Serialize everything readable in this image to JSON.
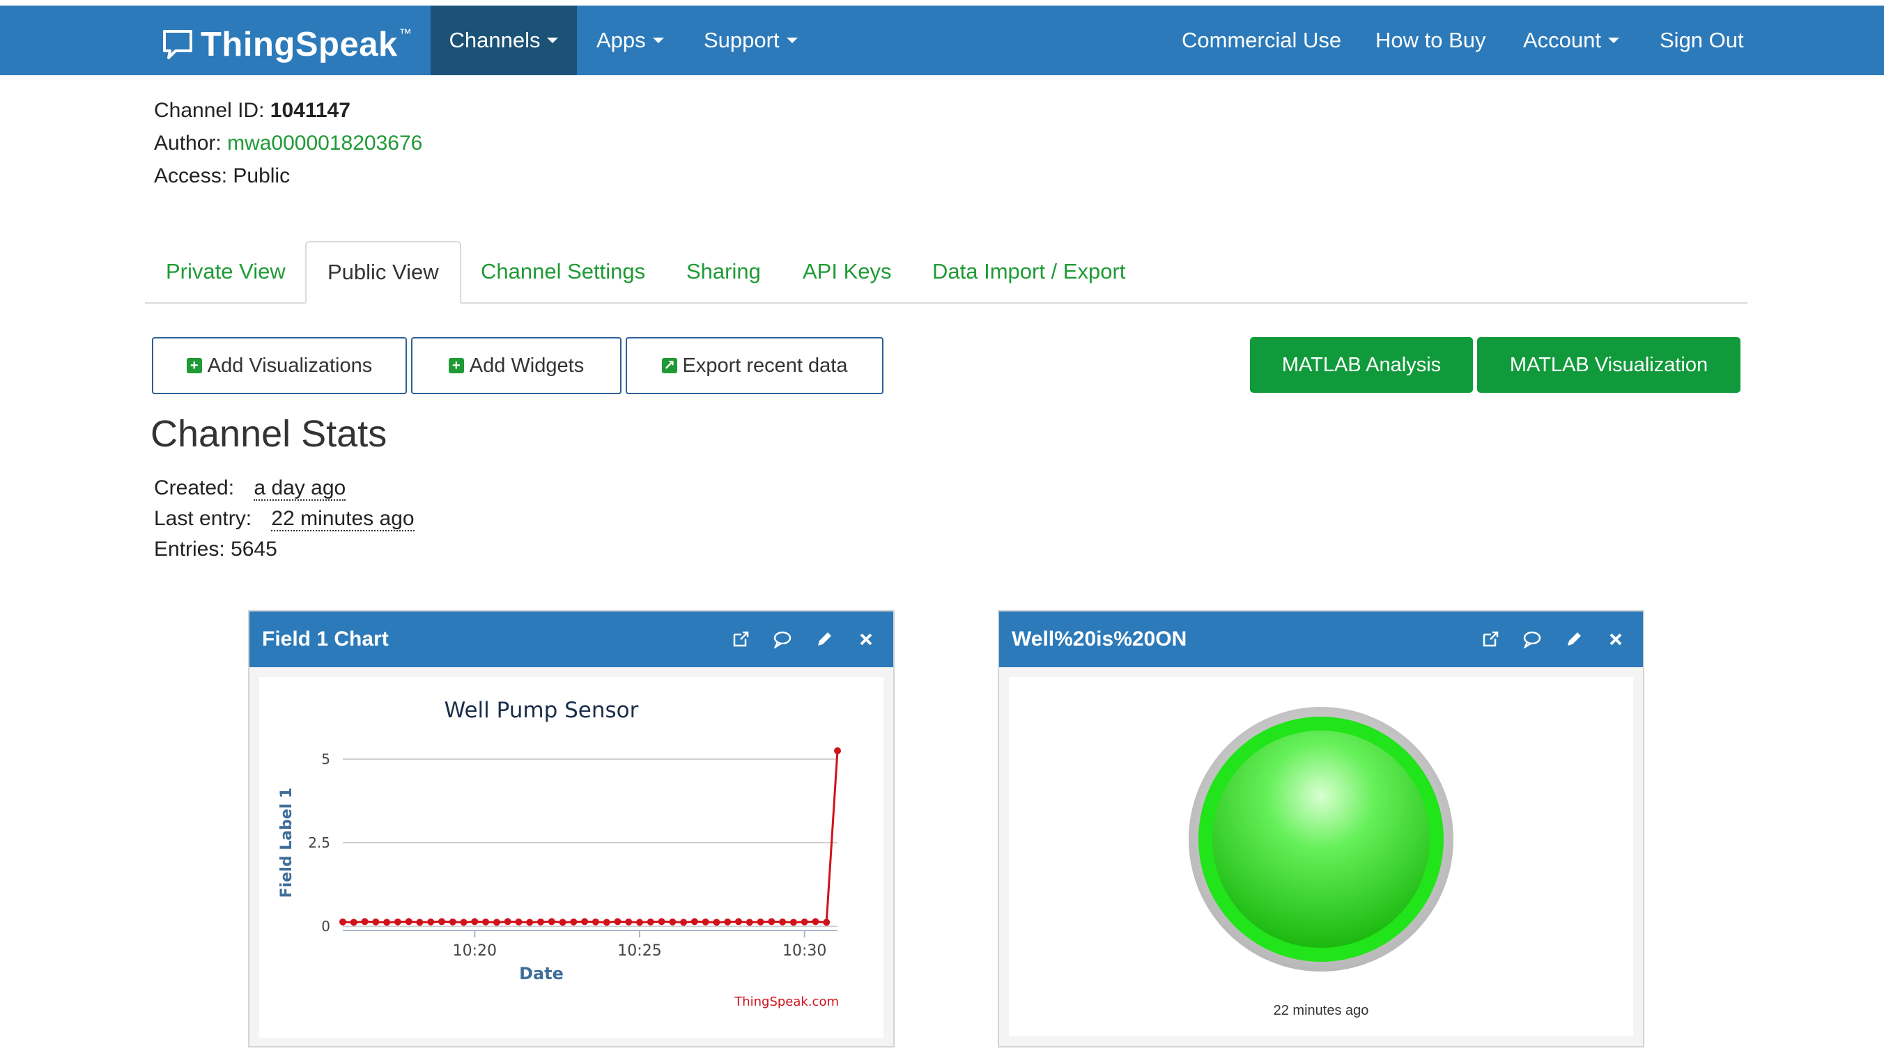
{
  "nav": {
    "brand": "ThingSpeak",
    "trademark": "™",
    "left_items": [
      "Channels",
      "Apps",
      "Support"
    ],
    "right_items": [
      "Commercial Use",
      "How to Buy",
      "Account",
      "Sign Out"
    ]
  },
  "channel": {
    "id_label": "Channel ID:",
    "id_value": "1041147",
    "author_label": "Author:",
    "author_value": "mwa0000018203676",
    "access_label": "Access:",
    "access_value": "Public"
  },
  "tabs": [
    "Private View",
    "Public View",
    "Channel Settings",
    "Sharing",
    "API Keys",
    "Data Import / Export"
  ],
  "active_tab": "Public View",
  "actions": {
    "add_visualizations": "Add Visualizations",
    "add_widgets": "Add Widgets",
    "export_recent": "Export recent data",
    "matlab_analysis": "MATLAB Analysis",
    "matlab_visualization": "MATLAB Visualization"
  },
  "stats": {
    "title": "Channel Stats",
    "created_label": "Created:",
    "created_value": "a day ago",
    "last_entry_label": "Last entry:",
    "last_entry_value": "22 minutes ago",
    "entries_label": "Entries:",
    "entries_value": "5645"
  },
  "panels": {
    "chart_panel_title": "Field 1 Chart",
    "lamp_panel_title": "Well%20is%20ON",
    "lamp_time": "22 minutes ago",
    "lamp_color": "#22e41a"
  },
  "colors": {
    "brand_blue": "#2c7ab9",
    "nav_active": "#1b5276",
    "link_green": "#1f9a35",
    "button_green": "#119a3b",
    "series_red": "#d0121b"
  },
  "chart_data": {
    "type": "line",
    "title": "Well Pump Sensor",
    "xlabel": "Date",
    "ylabel": "Field Label 1",
    "credit": "ThingSpeak.com",
    "x_ticks": [
      "10:20",
      "10:25",
      "10:30"
    ],
    "y_ticks": [
      "0",
      "2.5",
      "5"
    ],
    "ylim": [
      0,
      5
    ],
    "xlim": [
      "10:16",
      "10:31"
    ],
    "grid": true,
    "series": [
      {
        "x": [
          "10:16",
          "10:16:20",
          "10:16:40",
          "10:17",
          "10:17:20",
          "10:17:40",
          "10:18",
          "10:18:20",
          "10:18:40",
          "10:19",
          "10:19:20",
          "10:19:40",
          "10:20",
          "10:20:20",
          "10:20:40",
          "10:21",
          "10:21:20",
          "10:21:40",
          "10:22",
          "10:22:20",
          "10:22:40",
          "10:23",
          "10:23:20",
          "10:23:40",
          "10:24",
          "10:24:20",
          "10:24:40",
          "10:25",
          "10:25:20",
          "10:25:40",
          "10:26",
          "10:26:20",
          "10:26:40",
          "10:27",
          "10:27:20",
          "10:27:40",
          "10:28",
          "10:28:20",
          "10:28:40",
          "10:29",
          "10:29:20",
          "10:29:40",
          "10:30",
          "10:30:20",
          "10:30:40",
          "10:31"
        ],
        "values": [
          0.13,
          0.12,
          0.14,
          0.13,
          0.12,
          0.13,
          0.14,
          0.12,
          0.13,
          0.14,
          0.13,
          0.12,
          0.14,
          0.13,
          0.12,
          0.14,
          0.13,
          0.12,
          0.13,
          0.14,
          0.12,
          0.13,
          0.14,
          0.13,
          0.12,
          0.14,
          0.13,
          0.12,
          0.13,
          0.14,
          0.13,
          0.12,
          0.14,
          0.13,
          0.12,
          0.13,
          0.14,
          0.12,
          0.13,
          0.14,
          0.13,
          0.12,
          0.13,
          0.14,
          0.12,
          5.25
        ]
      }
    ]
  }
}
